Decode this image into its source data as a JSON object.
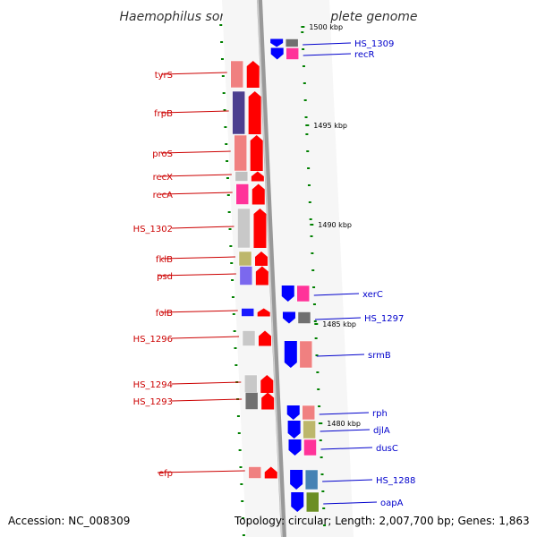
{
  "title": "Haemophilus somnus 129PT, complete genome",
  "footer": {
    "accession": "Accession: NC_008309",
    "summary": "Topology: circular; Length: 2,007,700 bp; Genes: 1,863"
  },
  "colors": {
    "forward_label": "#cc0000",
    "reverse_label": "#0000cc",
    "forward_arrow": "#ff0000",
    "reverse_arrow": "#0000ff",
    "tick": "#008000",
    "backbone": "#999999"
  },
  "position_markers": [
    "1500 kbp",
    "1495 kbp",
    "1490 kbp",
    "1485 kbp",
    "1480 kbp"
  ],
  "forward_genes": [
    {
      "name": "tyrS",
      "cog_color": "#f08080"
    },
    {
      "name": "frpB",
      "cog_color": "#4b3f8f"
    },
    {
      "name": "proS",
      "cog_color": "#f08080"
    },
    {
      "name": "recX",
      "cog_color": "#c0c0c0"
    },
    {
      "name": "recA",
      "cog_color": "#ff3399"
    },
    {
      "name": "HS_1302",
      "cog_color": "#c8c8c8"
    },
    {
      "name": "fklB",
      "cog_color": "#bdb76b"
    },
    {
      "name": "psd",
      "cog_color": "#7b68ee"
    },
    {
      "name": "folB",
      "cog_color": "#1a1aff"
    },
    {
      "name": "HS_1296",
      "cog_color": "#c8c8c8"
    },
    {
      "name": "HS_1294",
      "cog_color": "#c8c8c8"
    },
    {
      "name": "HS_1293",
      "cog_color": "#707070"
    },
    {
      "name": "efp",
      "cog_color": "#f08080"
    }
  ],
  "reverse_genes": [
    {
      "name": "HS_1309",
      "cog_color": "#707070"
    },
    {
      "name": "recR",
      "cog_color": "#ff3399"
    },
    {
      "name": "xerC",
      "cog_color": "#ff3399"
    },
    {
      "name": "HS_1297",
      "cog_color": "#707070"
    },
    {
      "name": "srmB",
      "cog_color": "#f08080"
    },
    {
      "name": "rph",
      "cog_color": "#f08080"
    },
    {
      "name": "djlA",
      "cog_color": "#bdb76b"
    },
    {
      "name": "dusC",
      "cog_color": "#ff3399"
    },
    {
      "name": "HS_1288",
      "cog_color": "#4682b4"
    },
    {
      "name": "oapA",
      "cog_color": "#6b8e23"
    }
  ]
}
